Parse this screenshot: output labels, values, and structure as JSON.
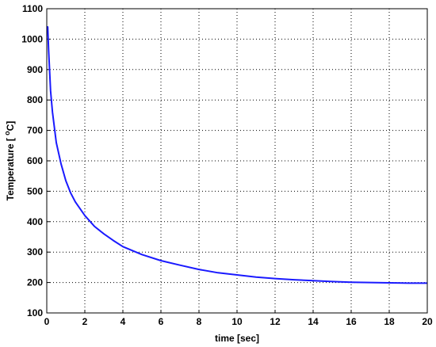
{
  "chart_data": {
    "type": "line",
    "title": "",
    "xlabel": "time [sec]",
    "ylabel_parts": {
      "prefix": "Temperature [ ",
      "sup": "o",
      "unit": "C",
      "suffix": "]"
    },
    "xlim": [
      0,
      20
    ],
    "ylim": [
      100,
      1100
    ],
    "xticks": [
      0,
      2,
      4,
      6,
      8,
      10,
      12,
      14,
      16,
      18,
      20
    ],
    "yticks": [
      100,
      200,
      300,
      400,
      500,
      600,
      700,
      800,
      900,
      1000,
      1100
    ],
    "grid": true,
    "colors": {
      "line": "#1a1aff"
    },
    "series": [
      {
        "x": [
          0,
          0.05,
          0.1,
          0.2,
          0.3,
          0.5,
          0.75,
          1.0,
          1.25,
          1.5,
          2.0,
          2.5,
          3.0,
          3.5,
          4.0,
          4.5,
          5.0,
          6.0,
          7.0,
          8.0,
          9.0,
          10.0,
          11.0,
          12.0,
          13.0,
          14.0,
          15.0,
          16.0,
          17.0,
          18.0,
          19.0,
          20.0
        ],
        "y": [
          1040,
          1040,
          960,
          830,
          760,
          660,
          590,
          535,
          495,
          465,
          420,
          385,
          360,
          338,
          318,
          305,
          292,
          272,
          257,
          243,
          232,
          225,
          218,
          213,
          209,
          206,
          203,
          201,
          200,
          199,
          198,
          198
        ]
      }
    ]
  }
}
